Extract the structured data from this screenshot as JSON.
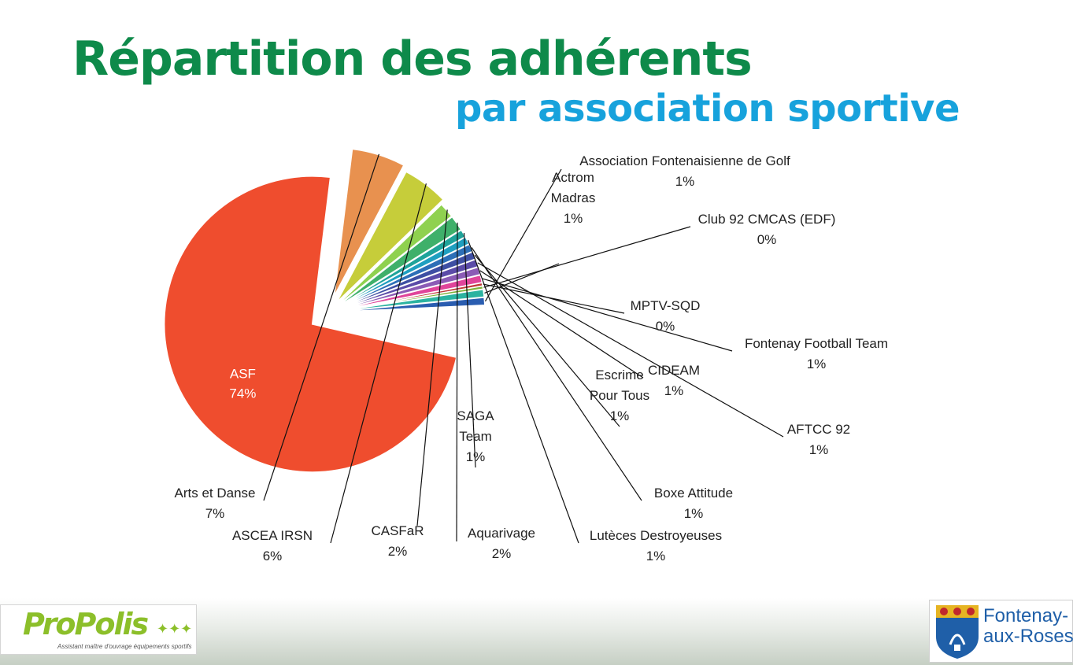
{
  "header": {
    "title": "Répartition des adhérents",
    "subtitle": "par association sportive"
  },
  "chart_data": {
    "type": "pie",
    "slices": [
      {
        "label": "ASF",
        "value": 74,
        "display": "74%",
        "color": "#ef4d2e"
      },
      {
        "label": "Arts et Danse",
        "value": 7,
        "display": "7%",
        "color": "#e8914f"
      },
      {
        "label": "ASCEA IRSN",
        "value": 6,
        "display": "6%",
        "color": "#c6cd3a"
      },
      {
        "label": "CASFaR",
        "value": 2,
        "display": "2%",
        "color": "#8fd14f"
      },
      {
        "label": "Aquarivage",
        "value": 2,
        "display": "2%",
        "color": "#3fb06a"
      },
      {
        "label": "SAGA Team",
        "value": 1,
        "display": "1%",
        "color": "#1fa39a"
      },
      {
        "label": "Lutèces Destroyeuses",
        "value": 1,
        "display": "1%",
        "color": "#1f9fc0"
      },
      {
        "label": "Boxe Attitude",
        "value": 1,
        "display": "1%",
        "color": "#2d6fb7"
      },
      {
        "label": "Escrime Pour Tous",
        "value": 1,
        "display": "1%",
        "color": "#3e4fa3"
      },
      {
        "label": "AFTCC 92",
        "value": 1,
        "display": "1%",
        "color": "#5b4ba8"
      },
      {
        "label": "CIDEAM",
        "value": 1,
        "display": "1%",
        "color": "#8b5bb5"
      },
      {
        "label": "Fontenay Football Team",
        "value": 1,
        "display": "1%",
        "color": "#e0449a"
      },
      {
        "label": "MPTV-SQD",
        "value": 0,
        "display": "0%",
        "color": "#c23a3a"
      },
      {
        "label": "Club 92 CMCAS (EDF)",
        "value": 0,
        "display": "0%",
        "color": "#7fb33a"
      },
      {
        "label": "Actrom Madras",
        "value": 1,
        "display": "1%",
        "color": "#2bb3a0"
      },
      {
        "label": "Association Fontenaisienne de Golf",
        "value": 1,
        "display": "1%",
        "color": "#2a5db0"
      }
    ]
  },
  "logos": {
    "propolis_name": "ProPolis",
    "propolis_tagline": "Assistant maître d'ouvrage équipements sportifs",
    "fontenay_line1": "Fontenay-",
    "fontenay_line2": "aux-Roses"
  }
}
